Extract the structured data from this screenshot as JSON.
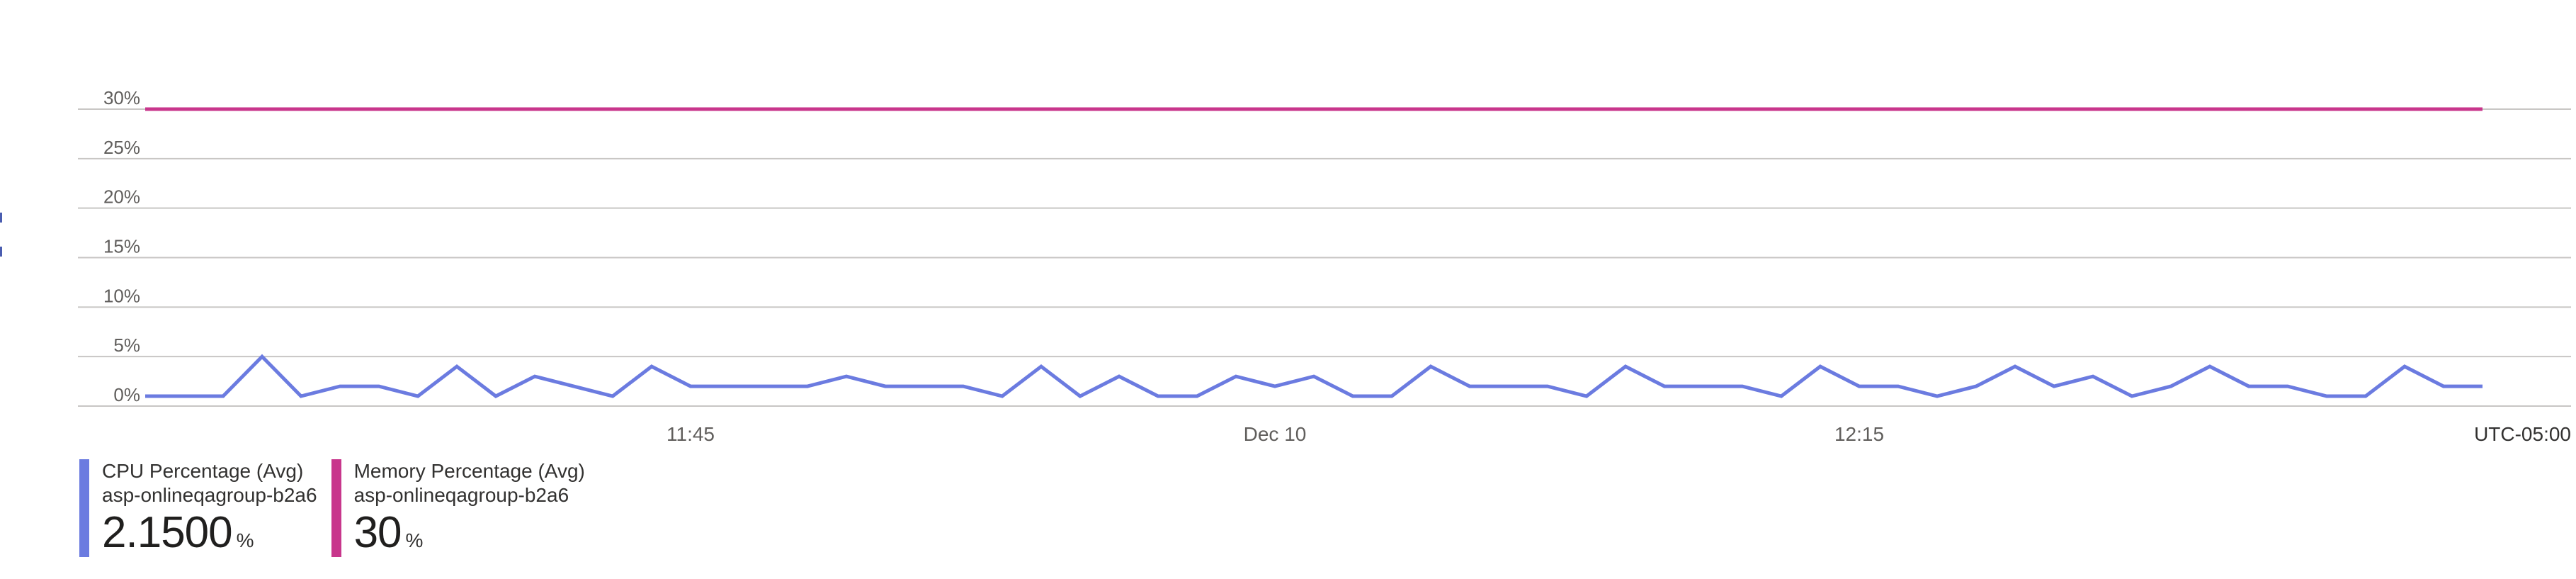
{
  "colors": {
    "cpu": "#6b7be0",
    "memory": "#c8368c",
    "grid": "#c8c6c4",
    "axis": "#605e5c"
  },
  "chart_data": {
    "type": "line",
    "title": "",
    "xlabel": "",
    "ylabel": "",
    "ylim": [
      0,
      30
    ],
    "y_ticks": [
      "0%",
      "5%",
      "10%",
      "15%",
      "20%",
      "25%",
      "30%"
    ],
    "y_tick_values": [
      0,
      5,
      10,
      15,
      20,
      25,
      30
    ],
    "grid": true,
    "x_ticks": [
      {
        "label": "11:45",
        "index": 14
      },
      {
        "label": "Dec 10",
        "index": 29
      },
      {
        "label": "12:15",
        "index": 44
      }
    ],
    "timezone": "UTC-05:00",
    "series": [
      {
        "name": "CPU Percentage (Avg)",
        "key": "cpu",
        "values": [
          1,
          1,
          1,
          5,
          1,
          2,
          2,
          1,
          4,
          1,
          3,
          2,
          1,
          4,
          2,
          2,
          2,
          2,
          3,
          2,
          2,
          2,
          1,
          4,
          1,
          3,
          1,
          1,
          3,
          2,
          3,
          1,
          1,
          4,
          2,
          2,
          2,
          1,
          4,
          2,
          2,
          2,
          1,
          4,
          2,
          2,
          1,
          2,
          4,
          2,
          3,
          1,
          2,
          4,
          2,
          2,
          1,
          1,
          4,
          2,
          2
        ]
      },
      {
        "name": "Memory Percentage (Avg)",
        "key": "memory",
        "values": [
          30,
          30,
          30,
          30,
          30,
          30,
          30,
          30,
          30,
          30,
          30,
          30,
          30,
          30,
          30,
          30,
          30,
          30,
          30,
          30,
          30,
          30,
          30,
          30,
          30,
          30,
          30,
          30,
          30,
          30,
          30,
          30,
          30,
          30,
          30,
          30,
          30,
          30,
          30,
          30,
          30,
          30,
          30,
          30,
          30,
          30,
          30,
          30,
          30,
          30,
          30,
          30,
          30,
          30,
          30,
          30,
          30,
          30,
          30,
          30,
          30
        ]
      }
    ]
  },
  "legend": [
    {
      "metric": "CPU Percentage (Avg)",
      "resource": "asp-onlineqagroup-b2a6",
      "value": "2.1500",
      "unit": "%",
      "color_key": "cpu"
    },
    {
      "metric": "Memory Percentage (Avg)",
      "resource": "asp-onlineqagroup-b2a6",
      "value": "30",
      "unit": "%",
      "color_key": "memory"
    }
  ]
}
